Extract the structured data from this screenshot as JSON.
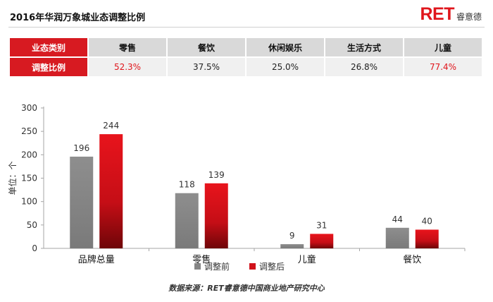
{
  "header": {
    "title": "2016年华润万象城业态调整比例",
    "logo_main": "RET",
    "logo_sub": "睿意德"
  },
  "ratio_table": {
    "header_label": "业态类别",
    "row_label": "调整比例",
    "columns": [
      {
        "name": "零售",
        "value": "52.3%",
        "highlight": true
      },
      {
        "name": "餐饮",
        "value": "37.5%",
        "highlight": false
      },
      {
        "name": "休闲娱乐",
        "value": "25.0%",
        "highlight": false
      },
      {
        "name": "生活方式",
        "value": "26.8%",
        "highlight": false
      },
      {
        "name": "儿童",
        "value": "77.4%",
        "highlight": true
      }
    ]
  },
  "chart_data": {
    "type": "bar",
    "title": "",
    "ylabel": "单位：个",
    "xlabel": "",
    "ylim": [
      0,
      300
    ],
    "yticks": [
      0,
      50,
      100,
      150,
      200,
      250,
      300
    ],
    "categories": [
      "品牌总量",
      "零售",
      "儿童",
      "餐饮"
    ],
    "series": [
      {
        "name": "调整前",
        "values": [
          196,
          118,
          9,
          44
        ],
        "color": "#858585"
      },
      {
        "name": "调整后",
        "values": [
          244,
          139,
          31,
          40
        ],
        "color": "#d0111a"
      }
    ],
    "grid": false,
    "legend": "bottom-center"
  },
  "footer": {
    "source": "数据来源：RET睿意德中国商业地产研究中心"
  },
  "colors": {
    "accent": "#d71a21",
    "bar_before": "#858585",
    "bar_after": "#d0111a"
  }
}
